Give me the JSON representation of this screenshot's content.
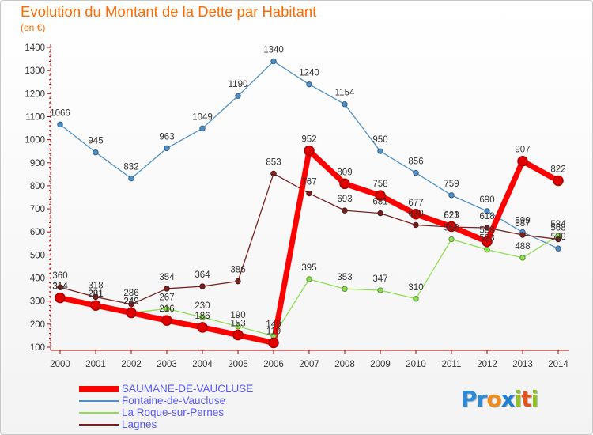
{
  "chart_data": {
    "type": "line",
    "title": "Evolution du Montant de la Dette par Habitant",
    "subtitle": "(en €)",
    "x": [
      "2000",
      "2001",
      "2002",
      "2003",
      "2004",
      "2005",
      "2006",
      "2007",
      "2008",
      "2009",
      "2010",
      "2011",
      "2012",
      "2013",
      "2014"
    ],
    "ylim": [
      100,
      1400
    ],
    "yticks": [
      100,
      200,
      300,
      400,
      500,
      600,
      700,
      800,
      900,
      1000,
      1100,
      1200,
      1300,
      1400
    ],
    "grid": false,
    "legend_position": "bottom-left",
    "series": [
      {
        "name": "SAUMANE-DE-VAUCLUSE",
        "color": "#ff0000",
        "values": [
          314,
          281,
          249,
          216,
          186,
          153,
          119,
          952,
          809,
          758,
          677,
          623,
          558,
          907,
          822
        ]
      },
      {
        "name": "Fontaine-de-Vaucluse",
        "color": "#4f90c8",
        "values": [
          1066,
          945,
          832,
          963,
          1049,
          1190,
          1340,
          1240,
          1154,
          950,
          856,
          759,
          690,
          599,
          528
        ]
      },
      {
        "name": "La Roque-sur-Pernes",
        "color": "#8fde52",
        "values": [
          314,
          281,
          249,
          267,
          230,
          190,
          149,
          395,
          353,
          347,
          310,
          568,
          523,
          488,
          584
        ]
      },
      {
        "name": "Lagnes",
        "color": "#7b2020",
        "values": [
          360,
          318,
          286,
          354,
          364,
          386,
          853,
          767,
          693,
          681,
          630,
          621,
          618,
          587,
          568
        ]
      }
    ]
  },
  "branding": {
    "logo_text": "Proxiti",
    "logo_letters": [
      "P",
      "r",
      "o",
      "x",
      "i",
      "t",
      "i"
    ],
    "logo_colors": [
      "#2f8bd8",
      "#2f8bd8",
      "#f08c1e",
      "#1e7fd1",
      "#8fc31f",
      "#e2541b",
      "#8fc31f"
    ]
  }
}
